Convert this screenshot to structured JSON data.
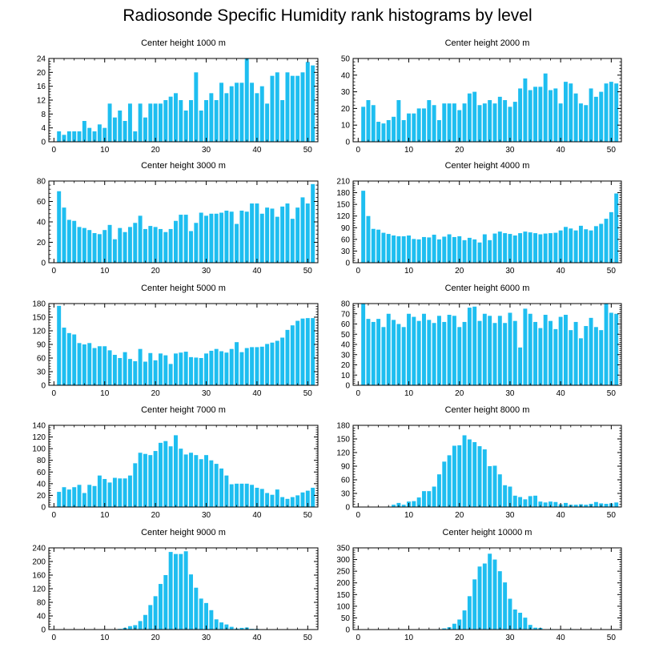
{
  "title": "Radiosonde Specific Humidity rank histograms by level",
  "bar_color": "#1ebef0",
  "chart_data": [
    {
      "type": "bar",
      "title": "Center height 1000 m",
      "xlabel": "",
      "ylabel": "",
      "xlim": [
        -1,
        52
      ],
      "xticks": [
        0,
        10,
        20,
        30,
        40,
        50
      ],
      "ylim": [
        0,
        24
      ],
      "yticks": [
        0,
        4,
        8,
        12,
        16,
        20,
        24
      ],
      "categories": [
        1,
        2,
        3,
        4,
        5,
        6,
        7,
        8,
        9,
        10,
        11,
        12,
        13,
        14,
        15,
        16,
        17,
        18,
        19,
        20,
        21,
        22,
        23,
        24,
        25,
        26,
        27,
        28,
        29,
        30,
        31,
        32,
        33,
        34,
        35,
        36,
        37,
        38,
        39,
        40,
        41,
        42,
        43,
        44,
        45,
        46,
        47,
        48,
        49,
        50,
        51
      ],
      "values": [
        3,
        2,
        3,
        3,
        3,
        6,
        4,
        3,
        5,
        4,
        11,
        7,
        9,
        6,
        11,
        3,
        11,
        7,
        11,
        11,
        11,
        12,
        13,
        14,
        12,
        9,
        12,
        20,
        9,
        12,
        14,
        12,
        17,
        14,
        16,
        17,
        17,
        24,
        17,
        14,
        16,
        11,
        19,
        20,
        12,
        20,
        19,
        19,
        20,
        23,
        22
      ]
    },
    {
      "type": "bar",
      "title": "Center height 2000 m",
      "xlabel": "",
      "ylabel": "",
      "xlim": [
        -1,
        52
      ],
      "xticks": [
        0,
        10,
        20,
        30,
        40,
        50
      ],
      "ylim": [
        0,
        50
      ],
      "yticks": [
        0,
        10,
        20,
        30,
        40,
        50
      ],
      "categories": [
        1,
        2,
        3,
        4,
        5,
        6,
        7,
        8,
        9,
        10,
        11,
        12,
        13,
        14,
        15,
        16,
        17,
        18,
        19,
        20,
        21,
        22,
        23,
        24,
        25,
        26,
        27,
        28,
        29,
        30,
        31,
        32,
        33,
        34,
        35,
        36,
        37,
        38,
        39,
        40,
        41,
        42,
        43,
        44,
        45,
        46,
        47,
        48,
        49,
        50,
        51
      ],
      "values": [
        21,
        25,
        22,
        12,
        11,
        13,
        15,
        25,
        13,
        17,
        17,
        20,
        20,
        25,
        22,
        13,
        23,
        23,
        23,
        19,
        23,
        29,
        30,
        22,
        23,
        25,
        23,
        27,
        25,
        21,
        24,
        32,
        38,
        31,
        33,
        33,
        41,
        31,
        32,
        23,
        36,
        35,
        29,
        23,
        22,
        32,
        27,
        30,
        35,
        36,
        35
      ]
    },
    {
      "type": "bar",
      "title": "Center height 3000 m",
      "xlabel": "",
      "ylabel": "",
      "xlim": [
        -1,
        52
      ],
      "xticks": [
        0,
        10,
        20,
        30,
        40,
        50
      ],
      "ylim": [
        0,
        80
      ],
      "yticks": [
        0,
        20,
        40,
        60,
        80
      ],
      "categories": [
        1,
        2,
        3,
        4,
        5,
        6,
        7,
        8,
        9,
        10,
        11,
        12,
        13,
        14,
        15,
        16,
        17,
        18,
        19,
        20,
        21,
        22,
        23,
        24,
        25,
        26,
        27,
        28,
        29,
        30,
        31,
        32,
        33,
        34,
        35,
        36,
        37,
        38,
        39,
        40,
        41,
        42,
        43,
        44,
        45,
        46,
        47,
        48,
        49,
        50,
        51
      ],
      "values": [
        70,
        54,
        42,
        41,
        35,
        34,
        32,
        29,
        28,
        32,
        37,
        23,
        34,
        30,
        35,
        39,
        46,
        33,
        36,
        35,
        33,
        30,
        33,
        41,
        47,
        47,
        31,
        39,
        49,
        46,
        48,
        48,
        49,
        51,
        50,
        38,
        51,
        50,
        58,
        58,
        48,
        54,
        53,
        45,
        55,
        58,
        43,
        54,
        64,
        58,
        77
      ]
    },
    {
      "type": "bar",
      "title": "Center height 4000 m",
      "xlabel": "",
      "ylabel": "",
      "xlim": [
        -1,
        52
      ],
      "xticks": [
        0,
        10,
        20,
        30,
        40,
        50
      ],
      "ylim": [
        0,
        210
      ],
      "yticks": [
        0,
        30,
        60,
        90,
        120,
        150,
        180,
        210
      ],
      "categories": [
        1,
        2,
        3,
        4,
        5,
        6,
        7,
        8,
        9,
        10,
        11,
        12,
        13,
        14,
        15,
        16,
        17,
        18,
        19,
        20,
        21,
        22,
        23,
        24,
        25,
        26,
        27,
        28,
        29,
        30,
        31,
        32,
        33,
        34,
        35,
        36,
        37,
        38,
        39,
        40,
        41,
        42,
        43,
        44,
        45,
        46,
        47,
        48,
        49,
        50,
        51
      ],
      "values": [
        185,
        120,
        87,
        85,
        77,
        74,
        70,
        68,
        68,
        70,
        61,
        60,
        66,
        65,
        72,
        60,
        67,
        73,
        66,
        68,
        58,
        64,
        60,
        52,
        73,
        58,
        75,
        80,
        76,
        74,
        70,
        76,
        80,
        78,
        76,
        73,
        75,
        76,
        77,
        83,
        92,
        88,
        83,
        95,
        86,
        83,
        94,
        100,
        113,
        130,
        178
      ]
    },
    {
      "type": "bar",
      "title": "Center height 5000 m",
      "xlabel": "",
      "ylabel": "",
      "xlim": [
        -1,
        52
      ],
      "xticks": [
        0,
        10,
        20,
        30,
        40,
        50
      ],
      "ylim": [
        0,
        180
      ],
      "yticks": [
        0,
        30,
        60,
        90,
        120,
        150,
        180
      ],
      "categories": [
        1,
        2,
        3,
        4,
        5,
        6,
        7,
        8,
        9,
        10,
        11,
        12,
        13,
        14,
        15,
        16,
        17,
        18,
        19,
        20,
        21,
        22,
        23,
        24,
        25,
        26,
        27,
        28,
        29,
        30,
        31,
        32,
        33,
        34,
        35,
        36,
        37,
        38,
        39,
        40,
        41,
        42,
        43,
        44,
        45,
        46,
        47,
        48,
        49,
        50,
        51
      ],
      "values": [
        175,
        127,
        115,
        112,
        93,
        90,
        93,
        82,
        86,
        86,
        77,
        67,
        60,
        73,
        58,
        53,
        80,
        52,
        71,
        55,
        70,
        66,
        47,
        70,
        72,
        74,
        62,
        61,
        60,
        70,
        76,
        80,
        75,
        72,
        80,
        95,
        73,
        82,
        84,
        84,
        85,
        91,
        94,
        98,
        105,
        122,
        132,
        142,
        147,
        148,
        148
      ]
    },
    {
      "type": "bar",
      "title": "Center height 6000 m",
      "xlabel": "",
      "ylabel": "",
      "xlim": [
        -1,
        52
      ],
      "xticks": [
        0,
        10,
        20,
        30,
        40,
        50
      ],
      "ylim": [
        0,
        80
      ],
      "yticks": [
        0,
        10,
        20,
        30,
        40,
        50,
        60,
        70,
        80
      ],
      "categories": [
        1,
        2,
        3,
        4,
        5,
        6,
        7,
        8,
        9,
        10,
        11,
        12,
        13,
        14,
        15,
        16,
        17,
        18,
        19,
        20,
        21,
        22,
        23,
        24,
        25,
        26,
        27,
        28,
        29,
        30,
        31,
        32,
        33,
        34,
        35,
        36,
        37,
        38,
        39,
        40,
        41,
        42,
        43,
        44,
        45,
        46,
        47,
        48,
        49,
        50,
        51
      ],
      "values": [
        80,
        65,
        62,
        65,
        57,
        70,
        64,
        60,
        57,
        70,
        67,
        63,
        70,
        64,
        61,
        68,
        62,
        69,
        68,
        57,
        62,
        76,
        77,
        63,
        70,
        68,
        61,
        68,
        61,
        71,
        63,
        37,
        75,
        70,
        62,
        56,
        69,
        63,
        55,
        67,
        69,
        54,
        62,
        46,
        58,
        66,
        57,
        54,
        80,
        71,
        70
      ]
    },
    {
      "type": "bar",
      "title": "Center height 7000 m",
      "xlabel": "",
      "ylabel": "",
      "xlim": [
        -1,
        52
      ],
      "xticks": [
        0,
        10,
        20,
        30,
        40,
        50
      ],
      "ylim": [
        0,
        140
      ],
      "yticks": [
        0,
        20,
        40,
        60,
        80,
        100,
        120,
        140
      ],
      "categories": [
        1,
        2,
        3,
        4,
        5,
        6,
        7,
        8,
        9,
        10,
        11,
        12,
        13,
        14,
        15,
        16,
        17,
        18,
        19,
        20,
        21,
        22,
        23,
        24,
        25,
        26,
        27,
        28,
        29,
        30,
        31,
        32,
        33,
        34,
        35,
        36,
        37,
        38,
        39,
        40,
        41,
        42,
        43,
        44,
        45,
        46,
        47,
        48,
        49,
        50,
        51
      ],
      "values": [
        26,
        34,
        30,
        34,
        38,
        24,
        38,
        36,
        54,
        48,
        42,
        50,
        49,
        49,
        54,
        75,
        93,
        91,
        89,
        96,
        110,
        113,
        104,
        123,
        100,
        90,
        93,
        89,
        82,
        89,
        80,
        74,
        66,
        54,
        39,
        40,
        40,
        40,
        38,
        33,
        31,
        24,
        21,
        30,
        17,
        14,
        17,
        20,
        25,
        28,
        33
      ]
    },
    {
      "type": "bar",
      "title": "Center height 8000 m",
      "xlabel": "",
      "ylabel": "",
      "xlim": [
        -1,
        52
      ],
      "xticks": [
        0,
        10,
        20,
        30,
        40,
        50
      ],
      "ylim": [
        0,
        180
      ],
      "yticks": [
        0,
        30,
        60,
        90,
        120,
        150,
        180
      ],
      "categories": [
        1,
        2,
        3,
        4,
        5,
        6,
        7,
        8,
        9,
        10,
        11,
        12,
        13,
        14,
        15,
        16,
        17,
        18,
        19,
        20,
        21,
        22,
        23,
        24,
        25,
        26,
        27,
        28,
        29,
        30,
        31,
        32,
        33,
        34,
        35,
        36,
        37,
        38,
        39,
        40,
        41,
        42,
        43,
        44,
        45,
        46,
        47,
        48,
        49,
        50,
        51
      ],
      "values": [
        0,
        0,
        0,
        0,
        0,
        1,
        5,
        9,
        5,
        12,
        13,
        21,
        35,
        35,
        45,
        72,
        100,
        114,
        135,
        136,
        158,
        149,
        143,
        134,
        127,
        90,
        91,
        72,
        48,
        45,
        25,
        22,
        17,
        24,
        25,
        12,
        10,
        12,
        11,
        6,
        9,
        5,
        5,
        6,
        5,
        7,
        11,
        8,
        7,
        8,
        10
      ]
    },
    {
      "type": "bar",
      "title": "Center height 9000 m",
      "xlabel": "",
      "ylabel": "",
      "xlim": [
        -1,
        52
      ],
      "xticks": [
        0,
        10,
        20,
        30,
        40,
        50
      ],
      "ylim": [
        0,
        240
      ],
      "yticks": [
        0,
        40,
        80,
        120,
        160,
        200,
        240
      ],
      "categories": [
        1,
        2,
        3,
        4,
        5,
        6,
        7,
        8,
        9,
        10,
        11,
        12,
        13,
        14,
        15,
        16,
        17,
        18,
        19,
        20,
        21,
        22,
        23,
        24,
        25,
        26,
        27,
        28,
        29,
        30,
        31,
        32,
        33,
        34,
        35,
        36,
        37,
        38,
        39,
        40,
        41,
        42,
        43,
        44,
        45,
        46,
        47,
        48,
        49,
        50,
        51
      ],
      "values": [
        0,
        0,
        0,
        0,
        0,
        0,
        0,
        0,
        0,
        0,
        0,
        1,
        2,
        5,
        10,
        13,
        25,
        43,
        72,
        98,
        134,
        160,
        228,
        222,
        222,
        230,
        162,
        123,
        91,
        78,
        57,
        30,
        21,
        15,
        8,
        3,
        5,
        6,
        2,
        2,
        1,
        0,
        1,
        0,
        0,
        0,
        0,
        0,
        0,
        0,
        0
      ]
    },
    {
      "type": "bar",
      "title": "Center height 10000 m",
      "xlabel": "",
      "ylabel": "",
      "xlim": [
        -1,
        52
      ],
      "xticks": [
        0,
        10,
        20,
        30,
        40,
        50
      ],
      "ylim": [
        0,
        350
      ],
      "yticks": [
        0,
        50,
        100,
        150,
        200,
        250,
        300,
        350
      ],
      "categories": [
        1,
        2,
        3,
        4,
        5,
        6,
        7,
        8,
        9,
        10,
        11,
        12,
        13,
        14,
        15,
        16,
        17,
        18,
        19,
        20,
        21,
        22,
        23,
        24,
        25,
        26,
        27,
        28,
        29,
        30,
        31,
        32,
        33,
        34,
        35,
        36,
        37,
        38,
        39,
        40,
        41,
        42,
        43,
        44,
        45,
        46,
        47,
        48,
        49,
        50,
        51
      ],
      "values": [
        0,
        0,
        0,
        0,
        0,
        0,
        0,
        0,
        0,
        0,
        0,
        0,
        0,
        0,
        0,
        2,
        5,
        10,
        25,
        43,
        82,
        143,
        215,
        270,
        283,
        325,
        300,
        250,
        202,
        132,
        86,
        72,
        51,
        20,
        8,
        7,
        1,
        2,
        0,
        0,
        1,
        2,
        1,
        0,
        0,
        1,
        0,
        1,
        0,
        0,
        0
      ]
    }
  ]
}
